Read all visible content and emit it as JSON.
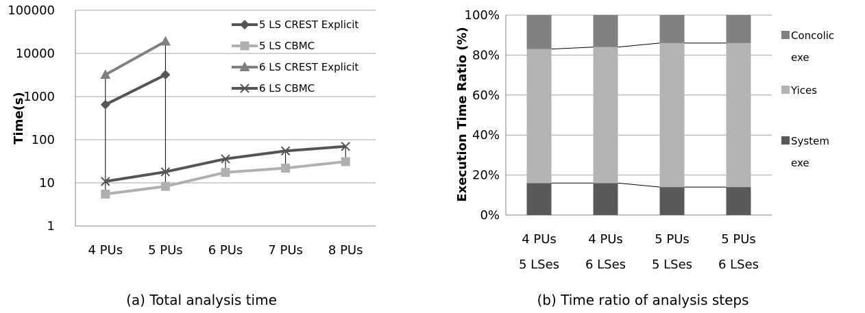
{
  "chart_data": [
    {
      "type": "line",
      "caption": "(a) Total analysis time",
      "ylabel": "Time(s)",
      "y_scale": "log",
      "ylim": [
        1,
        100000
      ],
      "y_ticks": [
        "1",
        "10",
        "100",
        "1000",
        "10000",
        "100000"
      ],
      "categories": [
        "4 PUs",
        "5 PUs",
        "6 PUs",
        "7 PUs",
        "8 PUs"
      ],
      "grid": "horizontal",
      "legend_position": "top-right",
      "series": [
        {
          "name": "5 LS CREST Explicit",
          "color": "#555555",
          "marker": "diamond",
          "values": [
            650,
            3200,
            null,
            null,
            null
          ]
        },
        {
          "name": "5 LS CBMC",
          "color": "#b0b0b0",
          "marker": "square",
          "values": [
            5.5,
            8.3,
            17.5,
            22,
            31
          ]
        },
        {
          "name": "6 LS CREST Explicit",
          "color": "#808080",
          "marker": "triangle",
          "values": [
            3200,
            19000,
            null,
            null,
            null
          ]
        },
        {
          "name": "6 LS CBMC",
          "color": "#555555",
          "marker": "x",
          "values": [
            10.8,
            18,
            36,
            55,
            70
          ]
        }
      ]
    },
    {
      "type": "bar",
      "stacked": "percent",
      "caption": "(b) Time ratio of analysis steps",
      "ylabel": "Execution Time Ratio (%)",
      "ylim": [
        0,
        100
      ],
      "y_ticks": [
        "0%",
        "20%",
        "40%",
        "60%",
        "80%",
        "100%"
      ],
      "categories": [
        [
          "4 PUs",
          "5 LSes"
        ],
        [
          "4 PUs",
          "6 LSes"
        ],
        [
          "5 PUs",
          "5 LSes"
        ],
        [
          "5 PUs",
          "6 LSes"
        ]
      ],
      "grid": "horizontal",
      "legend_position": "right",
      "series": [
        {
          "name": [
            "System",
            "exe"
          ],
          "color": "#595959",
          "values": [
            16,
            16,
            14,
            14
          ]
        },
        {
          "name": [
            "Yices",
            ""
          ],
          "color": "#b3b3b3",
          "values": [
            67,
            68,
            72,
            72
          ]
        },
        {
          "name": [
            "Concolic",
            "exe"
          ],
          "color": "#808080",
          "values": [
            17,
            16,
            14,
            14
          ]
        }
      ]
    }
  ]
}
